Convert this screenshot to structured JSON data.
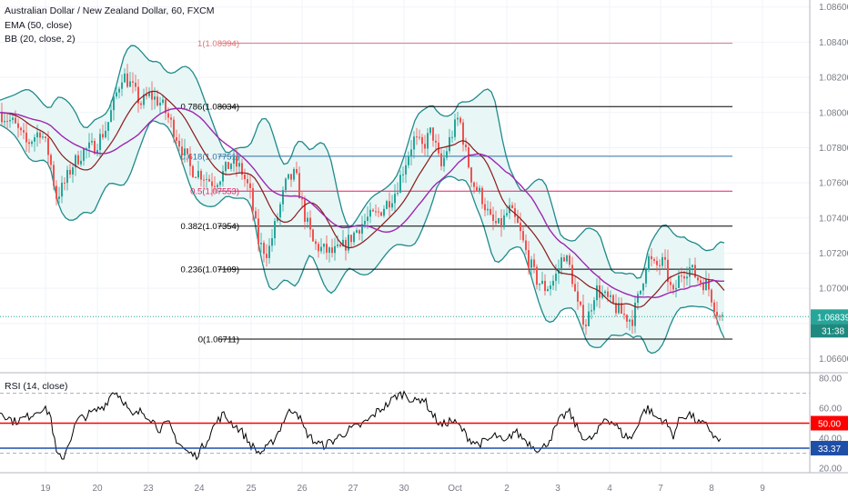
{
  "legend": {
    "symbol": "Australian Dollar / New Zealand Dollar, 60, FXCM",
    "ema": "EMA (50, close)",
    "bb": "BB (20, close, 2)",
    "rsi": "RSI (14, close)"
  },
  "colors": {
    "up": "#26a69a",
    "down": "#ef5350",
    "bb_line": "#1f8a8a",
    "bb_fill": "#e4f4f4",
    "ema": "#9c27b0",
    "basis": "#8b1a1a",
    "rsi_line": "#000000",
    "rsi_50": "#ff0000",
    "rsi_level": "#1e4fa8",
    "last_price_tag": "#26a69a"
  },
  "chart_data": [
    {
      "type": "candlestick",
      "y_ticks": [
        "1.08600",
        "1.08400",
        "1.08200",
        "1.08000",
        "1.07800",
        "1.07600",
        "1.07400",
        "1.07200",
        "1.07000",
        "1.06800",
        "1.06600"
      ],
      "ylim": [
        1.0652,
        1.0864
      ],
      "x_ticks": [
        "19",
        "20",
        "23",
        "24",
        "25",
        "26",
        "27",
        "30",
        "Oct",
        "2",
        "3",
        "4",
        "7",
        "8",
        "9"
      ],
      "fib_levels": [
        {
          "label": "1(1.08394)",
          "value": 1.08394,
          "color": "#e57373"
        },
        {
          "label": "0.786(1.08034)",
          "value": 1.08034,
          "color": "#000000"
        },
        {
          "label": "0.618(1.07751)",
          "value": 1.07751,
          "color": "#2e6fa3"
        },
        {
          "label": "0.5(1.07553)",
          "value": 1.07553,
          "color": "#e91e63"
        },
        {
          "label": "0.382(1.07354)",
          "value": 1.07354,
          "color": "#000000"
        },
        {
          "label": "0.236(1.07109)",
          "value": 1.07109,
          "color": "#000000"
        },
        {
          "label": "0(1.06711)",
          "value": 1.06711,
          "color": "#000000"
        }
      ],
      "last_price": "1.06839",
      "countdown": "31:38",
      "price_path": [
        [
          0,
          1.08
        ],
        [
          15,
          1.0794
        ],
        [
          30,
          1.0782
        ],
        [
          45,
          1.079
        ],
        [
          55,
          1.0775
        ],
        [
          62,
          1.0752
        ],
        [
          70,
          1.0758
        ],
        [
          80,
          1.077
        ],
        [
          92,
          1.0778
        ],
        [
          105,
          1.0781
        ],
        [
          118,
          1.0792
        ],
        [
          128,
          1.081
        ],
        [
          135,
          1.0822
        ],
        [
          145,
          1.0815
        ],
        [
          155,
          1.0805
        ],
        [
          165,
          1.081
        ],
        [
          178,
          1.0805
        ],
        [
          190,
          1.0792
        ],
        [
          200,
          1.078
        ],
        [
          210,
          1.0768
        ],
        [
          222,
          1.0765
        ],
        [
          235,
          1.076
        ],
        [
          245,
          1.0765
        ],
        [
          255,
          1.0772
        ],
        [
          265,
          1.0768
        ],
        [
          275,
          1.0755
        ],
        [
          285,
          1.0725
        ],
        [
          295,
          1.072
        ],
        [
          305,
          1.074
        ],
        [
          315,
          1.076
        ],
        [
          325,
          1.0765
        ],
        [
          335,
          1.0742
        ],
        [
          345,
          1.0725
        ],
        [
          355,
          1.0722
        ],
        [
          365,
          1.072
        ],
        [
          375,
          1.0722
        ],
        [
          385,
          1.0728
        ],
        [
          395,
          1.0735
        ],
        [
          405,
          1.074
        ],
        [
          415,
          1.0742
        ],
        [
          425,
          1.0748
        ],
        [
          435,
          1.0755
        ],
        [
          445,
          1.077
        ],
        [
          455,
          1.0785
        ],
        [
          465,
          1.078
        ],
        [
          475,
          1.079
        ],
        [
          485,
          1.0768
        ],
        [
          495,
          1.0785
        ],
        [
          505,
          1.0798
        ],
        [
          512,
          1.0778
        ],
        [
          520,
          1.076
        ],
        [
          530,
          1.0752
        ],
        [
          540,
          1.0738
        ],
        [
          550,
          1.0735
        ],
        [
          560,
          1.0745
        ],
        [
          570,
          1.0735
        ],
        [
          580,
          1.0718
        ],
        [
          590,
          1.0705
        ],
        [
          600,
          1.07
        ],
        [
          610,
          1.0705
        ],
        [
          620,
          1.072
        ],
        [
          628,
          1.071
        ],
        [
          635,
          1.069
        ],
        [
          645,
          1.068
        ],
        [
          655,
          1.07
        ],
        [
          665,
          1.0695
        ],
        [
          675,
          1.069
        ],
        [
          685,
          1.0685
        ],
        [
          695,
          1.0682
        ],
        [
          705,
          1.07
        ],
        [
          712,
          1.0718
        ],
        [
          720,
          1.0712
        ],
        [
          730,
          1.0715
        ],
        [
          740,
          1.0695
        ],
        [
          748,
          1.0708
        ],
        [
          758,
          1.0712
        ],
        [
          768,
          1.0705
        ],
        [
          778,
          1.0702
        ],
        [
          786,
          1.069
        ],
        [
          792,
          1.0683
        ]
      ]
    },
    {
      "type": "line",
      "title": "RSI (14, close)",
      "y_ticks": [
        "80.00",
        "60.00",
        "40.00",
        "20.00"
      ],
      "ylim": [
        17,
        83
      ],
      "levels": [
        {
          "label": "50.00",
          "value": 50,
          "color": "#ff0000"
        },
        {
          "label": "33.37",
          "value": 33.37,
          "color": "#1e4fa8"
        }
      ],
      "dashed_levels": [
        70,
        30
      ],
      "rsi_path": [
        [
          0,
          58
        ],
        [
          15,
          51
        ],
        [
          30,
          54
        ],
        [
          45,
          60
        ],
        [
          55,
          57
        ],
        [
          62,
          30
        ],
        [
          68,
          25
        ],
        [
          75,
          36
        ],
        [
          85,
          52
        ],
        [
          95,
          55
        ],
        [
          105,
          58
        ],
        [
          115,
          62
        ],
        [
          125,
          72
        ],
        [
          135,
          66
        ],
        [
          145,
          54
        ],
        [
          155,
          58
        ],
        [
          165,
          54
        ],
        [
          175,
          46
        ],
        [
          185,
          50
        ],
        [
          195,
          38
        ],
        [
          205,
          31
        ],
        [
          215,
          28
        ],
        [
          225,
          36
        ],
        [
          235,
          48
        ],
        [
          245,
          56
        ],
        [
          255,
          50
        ],
        [
          265,
          45
        ],
        [
          275,
          36
        ],
        [
          285,
          30
        ],
        [
          295,
          34
        ],
        [
          305,
          43
        ],
        [
          315,
          56
        ],
        [
          325,
          60
        ],
        [
          335,
          45
        ],
        [
          345,
          38
        ],
        [
          355,
          35
        ],
        [
          365,
          38
        ],
        [
          375,
          42
        ],
        [
          385,
          46
        ],
        [
          395,
          48
        ],
        [
          405,
          52
        ],
        [
          415,
          58
        ],
        [
          425,
          62
        ],
        [
          435,
          68
        ],
        [
          445,
          70
        ],
        [
          455,
          64
        ],
        [
          465,
          67
        ],
        [
          475,
          56
        ],
        [
          485,
          48
        ],
        [
          495,
          52
        ],
        [
          505,
          48
        ],
        [
          515,
          40
        ],
        [
          525,
          36
        ],
        [
          535,
          38
        ],
        [
          545,
          42
        ],
        [
          555,
          36
        ],
        [
          565,
          45
        ],
        [
          575,
          40
        ],
        [
          585,
          35
        ],
        [
          595,
          32
        ],
        [
          605,
          40
        ],
        [
          615,
          52
        ],
        [
          625,
          58
        ],
        [
          635,
          46
        ],
        [
          645,
          38
        ],
        [
          655,
          42
        ],
        [
          665,
          54
        ],
        [
          675,
          50
        ],
        [
          685,
          42
        ],
        [
          695,
          40
        ],
        [
          705,
          56
        ],
        [
          712,
          60
        ],
        [
          720,
          54
        ],
        [
          730,
          52
        ],
        [
          740,
          42
        ],
        [
          748,
          54
        ],
        [
          758,
          56
        ],
        [
          768,
          50
        ],
        [
          778,
          48
        ],
        [
          786,
          40
        ],
        [
          792,
          38
        ]
      ]
    }
  ]
}
